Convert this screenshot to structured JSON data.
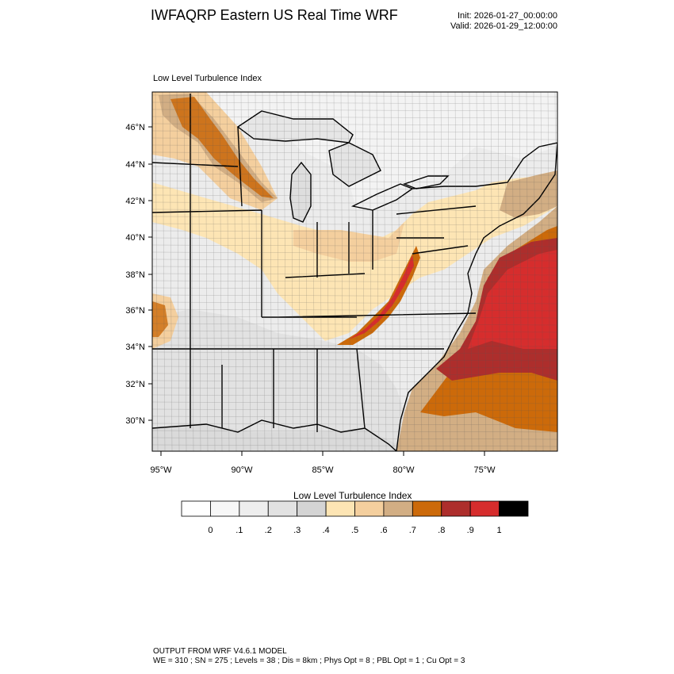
{
  "header": {
    "title": "IWFAQRP Eastern US Real Time WRF",
    "init": "Init: 2026-01-27_00:00:00",
    "valid": "Valid: 2026-01-29_12:00:00"
  },
  "map": {
    "field_label": "Low Level Turbulence Index",
    "lat_labels": [
      "46°N",
      "44°N",
      "42°N",
      "40°N",
      "38°N",
      "36°N",
      "34°N",
      "32°N",
      "30°N"
    ],
    "lon_labels": [
      "95°W",
      "90°W",
      "85°W",
      "80°W",
      "75°W"
    ]
  },
  "colorbar": {
    "title": "Low Level Turbulence Index",
    "colors": [
      "#ffffff",
      "#f7f7f7",
      "#eeeeee",
      "#e2e2e2",
      "#d4d4d4",
      "#fde5b4",
      "#f4cf9e",
      "#d2ae84",
      "#cc6a0a",
      "#ad2e2c",
      "#d62d2d",
      "#000000"
    ],
    "tick_labels": [
      "0",
      ".1",
      ".2",
      ".3",
      ".4",
      ".5",
      ".6",
      ".7",
      ".8",
      ".9",
      "1"
    ]
  },
  "footer": {
    "line1": "OUTPUT FROM WRF V4.6.1 MODEL",
    "line2": "WE = 310 ; SN = 275 ; Levels = 38 ; Dis = 8km ; Phys Opt = 8 ; PBL Opt = 1 ; Cu Opt = 3"
  }
}
